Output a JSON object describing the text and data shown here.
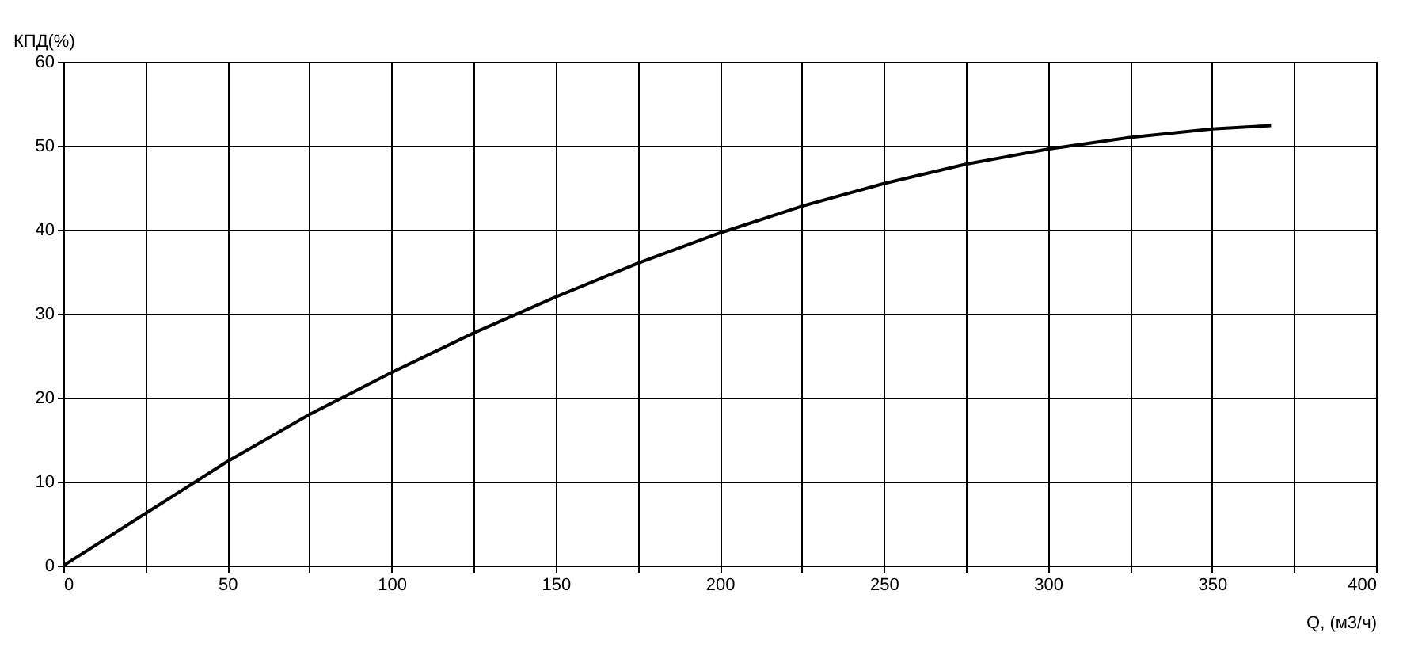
{
  "chart_data": {
    "type": "line",
    "xlabel": "Q, (м3/ч)",
    "ylabel": "КПД(%)",
    "x": [
      0,
      25,
      50,
      75,
      100,
      125,
      150,
      175,
      200,
      225,
      250,
      275,
      300,
      325,
      350,
      368
    ],
    "series": [
      {
        "color": "#000000",
        "values": [
          0,
          6.2,
          12.4,
          18,
          23,
          27.7,
          32,
          36,
          39.6,
          42.8,
          45.5,
          47.8,
          49.6,
          51,
          52,
          52.4
        ]
      }
    ],
    "xlim": [
      0,
      400
    ],
    "ylim": [
      0,
      60
    ],
    "xticks": [
      0,
      {
        "value": 25,
        "label": null
      },
      50,
      {
        "value": 75,
        "label": null
      },
      100,
      {
        "value": 125,
        "label": null
      },
      150,
      {
        "value": 175,
        "label": null
      },
      200,
      {
        "value": 225,
        "label": null
      },
      250,
      {
        "value": 275,
        "label": null
      },
      300,
      {
        "value": 325,
        "label": null
      },
      350,
      {
        "value": 375,
        "label": null
      },
      400
    ],
    "yticks": [
      0,
      10,
      20,
      30,
      40,
      50,
      60
    ],
    "grid": true,
    "legend": false,
    "marker": "none",
    "line_style": "solid"
  }
}
